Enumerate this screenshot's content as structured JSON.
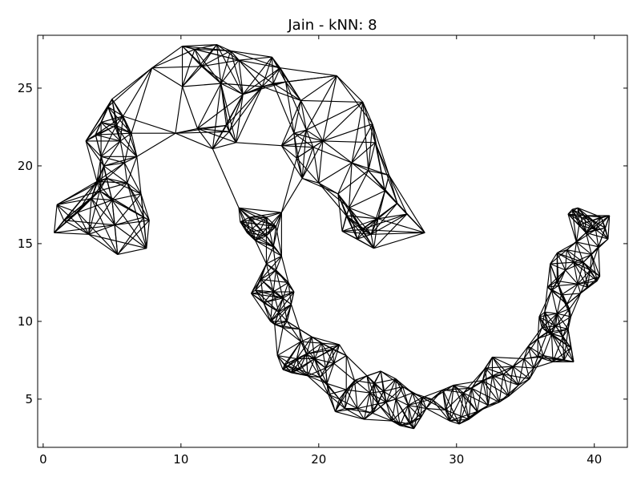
{
  "chart_data": {
    "type": "scatter",
    "title": "Jain - kNN: 8",
    "xlabel": "",
    "ylabel": "",
    "xlim": [
      -0.4,
      42.4
    ],
    "ylim": [
      1.9,
      28.4
    ],
    "xticks": [
      0,
      10,
      20,
      30,
      40
    ],
    "yticks": [
      5,
      10,
      15,
      20,
      25
    ],
    "grid": false,
    "k": 8,
    "edge_color": "#000000",
    "series": [
      {
        "values": [
          [
            0.8,
            15.7
          ],
          [
            1.0,
            17.5
          ],
          [
            1.5,
            16.5
          ],
          [
            2.5,
            17.0
          ],
          [
            3.3,
            15.6
          ],
          [
            3.5,
            17.9
          ],
          [
            3.1,
            21.6
          ],
          [
            3.8,
            22.0
          ],
          [
            4.2,
            20.6
          ],
          [
            4.4,
            20.0
          ],
          [
            4.6,
            19.2
          ],
          [
            4.1,
            18.4
          ],
          [
            5.0,
            17.8
          ],
          [
            5.2,
            16.2
          ],
          [
            5.4,
            14.3
          ],
          [
            5.0,
            24.3
          ],
          [
            5.3,
            22.6
          ],
          [
            5.6,
            21.6
          ],
          [
            5.9,
            20.2
          ],
          [
            6.1,
            18.9
          ],
          [
            6.4,
            22.1
          ],
          [
            6.8,
            20.6
          ],
          [
            7.1,
            18.2
          ],
          [
            7.3,
            16.7
          ],
          [
            7.5,
            14.7
          ],
          [
            7.7,
            16.5
          ],
          [
            4.7,
            23.8
          ],
          [
            4.2,
            22.8
          ],
          [
            5.8,
            23.2
          ],
          [
            3.9,
            19.0
          ],
          [
            7.9,
            26.3
          ],
          [
            10.1,
            27.7
          ],
          [
            11.0,
            27.5
          ],
          [
            12.6,
            27.8
          ],
          [
            13.6,
            27.4
          ],
          [
            14.2,
            26.8
          ],
          [
            16.6,
            27.0
          ],
          [
            17.2,
            26.3
          ],
          [
            17.6,
            25.4
          ],
          [
            14.5,
            24.6
          ],
          [
            13.3,
            22.6
          ],
          [
            12.3,
            21.1
          ],
          [
            11.2,
            22.4
          ],
          [
            11.5,
            26.4
          ],
          [
            10.1,
            25.1
          ],
          [
            9.6,
            22.1
          ],
          [
            12.9,
            25.3
          ],
          [
            13.5,
            22.2
          ],
          [
            14.0,
            21.5
          ],
          [
            18.7,
            24.2
          ],
          [
            15.9,
            25.1
          ],
          [
            16.7,
            25.3
          ],
          [
            18.2,
            22.1
          ],
          [
            19.1,
            22.3
          ],
          [
            19.6,
            21.2
          ],
          [
            18.4,
            20.5
          ],
          [
            17.3,
            21.3
          ],
          [
            21.3,
            25.8
          ],
          [
            23.2,
            24.1
          ],
          [
            23.9,
            22.7
          ],
          [
            24.1,
            21.5
          ],
          [
            22.4,
            20.2
          ],
          [
            23.6,
            19.7
          ],
          [
            24.8,
            18.4
          ],
          [
            24.3,
            16.6
          ],
          [
            23.8,
            15.6
          ],
          [
            22.8,
            15.3
          ],
          [
            21.7,
            15.8
          ],
          [
            21.4,
            18.2
          ],
          [
            22.2,
            17.3
          ],
          [
            25.1,
            19.4
          ],
          [
            25.7,
            17.6
          ],
          [
            26.4,
            16.9
          ],
          [
            27.7,
            15.7
          ],
          [
            20.0,
            18.9
          ],
          [
            18.8,
            19.2
          ],
          [
            20.3,
            21.6
          ],
          [
            24.0,
            14.7
          ],
          [
            23.1,
            15.9
          ],
          [
            22.0,
            16.8
          ],
          [
            14.2,
            17.3
          ],
          [
            14.3,
            16.4
          ],
          [
            14.8,
            15.7
          ],
          [
            15.4,
            15.2
          ],
          [
            16.2,
            15.5
          ],
          [
            16.9,
            16.1
          ],
          [
            17.3,
            17.0
          ],
          [
            16.2,
            16.7
          ],
          [
            15.0,
            16.7
          ],
          [
            16.7,
            14.8
          ],
          [
            17.3,
            14.2
          ],
          [
            16.9,
            13.3
          ],
          [
            16.2,
            13.7
          ],
          [
            15.8,
            12.7
          ],
          [
            15.4,
            12.0
          ],
          [
            15.1,
            11.8
          ],
          [
            16.0,
            11.2
          ],
          [
            16.7,
            11.9
          ],
          [
            17.4,
            11.5
          ],
          [
            17.8,
            12.5
          ],
          [
            18.2,
            11.9
          ],
          [
            18.0,
            11.1
          ],
          [
            17.1,
            10.6
          ],
          [
            16.5,
            10.0
          ],
          [
            16.8,
            9.8
          ],
          [
            17.4,
            9.6
          ],
          [
            17.7,
            10.0
          ],
          [
            18.6,
            9.5
          ],
          [
            18.7,
            8.7
          ],
          [
            19.5,
            9.0
          ],
          [
            20.2,
            8.6
          ],
          [
            21.0,
            8.2
          ],
          [
            21.5,
            8.5
          ],
          [
            22.0,
            7.8
          ],
          [
            21.1,
            7.3
          ],
          [
            20.5,
            7.0
          ],
          [
            19.7,
            7.6
          ],
          [
            19.1,
            7.9
          ],
          [
            18.4,
            7.6
          ],
          [
            17.5,
            7.2
          ],
          [
            17.0,
            7.8
          ],
          [
            17.4,
            6.9
          ],
          [
            18.0,
            6.7
          ],
          [
            18.6,
            6.9
          ],
          [
            19.2,
            6.5
          ],
          [
            20.1,
            6.4
          ],
          [
            20.6,
            6.0
          ],
          [
            20.7,
            5.3
          ],
          [
            21.5,
            5.0
          ],
          [
            21.2,
            4.2
          ],
          [
            21.9,
            4.4
          ],
          [
            22.8,
            4.4
          ],
          [
            23.3,
            3.7
          ],
          [
            23.9,
            4.1
          ],
          [
            24.3,
            4.7
          ],
          [
            24.9,
            4.8
          ],
          [
            25.3,
            3.6
          ],
          [
            25.9,
            3.3
          ],
          [
            26.6,
            3.4
          ],
          [
            26.9,
            3.1
          ],
          [
            27.4,
            3.8
          ],
          [
            27.8,
            4.4
          ],
          [
            28.2,
            5.0
          ],
          [
            27.5,
            5.1
          ],
          [
            26.8,
            5.4
          ],
          [
            26.1,
            5.8
          ],
          [
            25.6,
            6.3
          ],
          [
            24.5,
            6.8
          ],
          [
            23.5,
            6.5
          ],
          [
            22.6,
            6.2
          ],
          [
            22.0,
            5.6
          ],
          [
            23.7,
            5.4
          ],
          [
            24.7,
            5.5
          ],
          [
            25.6,
            5.0
          ],
          [
            26.5,
            4.6
          ],
          [
            24.0,
            6.0
          ],
          [
            29.0,
            5.6
          ],
          [
            29.8,
            5.9
          ],
          [
            30.5,
            5.4
          ],
          [
            31.1,
            5.7
          ],
          [
            29.2,
            4.3
          ],
          [
            29.5,
            3.6
          ],
          [
            30.2,
            3.4
          ],
          [
            30.9,
            3.7
          ],
          [
            31.5,
            4.2
          ],
          [
            32.3,
            4.6
          ],
          [
            33.1,
            4.8
          ],
          [
            33.8,
            5.2
          ],
          [
            34.5,
            5.9
          ],
          [
            35.3,
            6.3
          ],
          [
            35.6,
            7.0
          ],
          [
            35.9,
            7.7
          ],
          [
            34.9,
            7.6
          ],
          [
            34.1,
            7.1
          ],
          [
            33.4,
            6.6
          ],
          [
            32.6,
            6.5
          ],
          [
            32.1,
            7.0
          ],
          [
            32.6,
            7.7
          ],
          [
            31.9,
            6.2
          ],
          [
            35.2,
            8.4
          ],
          [
            35.9,
            8.9
          ],
          [
            36.6,
            9.3
          ],
          [
            37.2,
            9.7
          ],
          [
            38.1,
            9.5
          ],
          [
            38.3,
            10.3
          ],
          [
            38.0,
            11.1
          ],
          [
            37.6,
            11.7
          ],
          [
            36.9,
            12.0
          ],
          [
            37.3,
            12.6
          ],
          [
            37.9,
            13.3
          ],
          [
            38.5,
            13.8
          ],
          [
            39.2,
            13.8
          ],
          [
            39.8,
            14.3
          ],
          [
            40.3,
            14.8
          ],
          [
            41.0,
            15.3
          ],
          [
            41.1,
            16.8
          ],
          [
            40.5,
            16.7
          ],
          [
            39.9,
            16.5
          ],
          [
            39.3,
            16.8
          ],
          [
            38.8,
            17.3
          ],
          [
            38.4,
            17.2
          ],
          [
            38.1,
            16.9
          ],
          [
            38.9,
            16.2
          ],
          [
            39.4,
            15.7
          ],
          [
            40.1,
            15.9
          ],
          [
            40.8,
            16.0
          ],
          [
            38.7,
            15.1
          ],
          [
            38.0,
            14.6
          ],
          [
            37.3,
            14.4
          ],
          [
            36.8,
            13.7
          ],
          [
            36.6,
            12.2
          ],
          [
            37.4,
            12.3
          ],
          [
            38.8,
            12.4
          ],
          [
            39.5,
            12.2
          ],
          [
            40.2,
            12.6
          ],
          [
            40.4,
            12.9
          ],
          [
            39.7,
            13.3
          ],
          [
            39.0,
            11.8
          ],
          [
            38.2,
            10.8
          ],
          [
            37.3,
            10.5
          ],
          [
            36.4,
            10.6
          ],
          [
            36.0,
            10.3
          ],
          [
            36.2,
            9.6
          ],
          [
            36.9,
            9.2
          ],
          [
            37.7,
            9.0
          ],
          [
            38.3,
            8.3
          ],
          [
            38.5,
            7.4
          ],
          [
            37.8,
            7.5
          ],
          [
            37.0,
            7.4
          ],
          [
            36.3,
            7.8
          ]
        ]
      }
    ]
  }
}
